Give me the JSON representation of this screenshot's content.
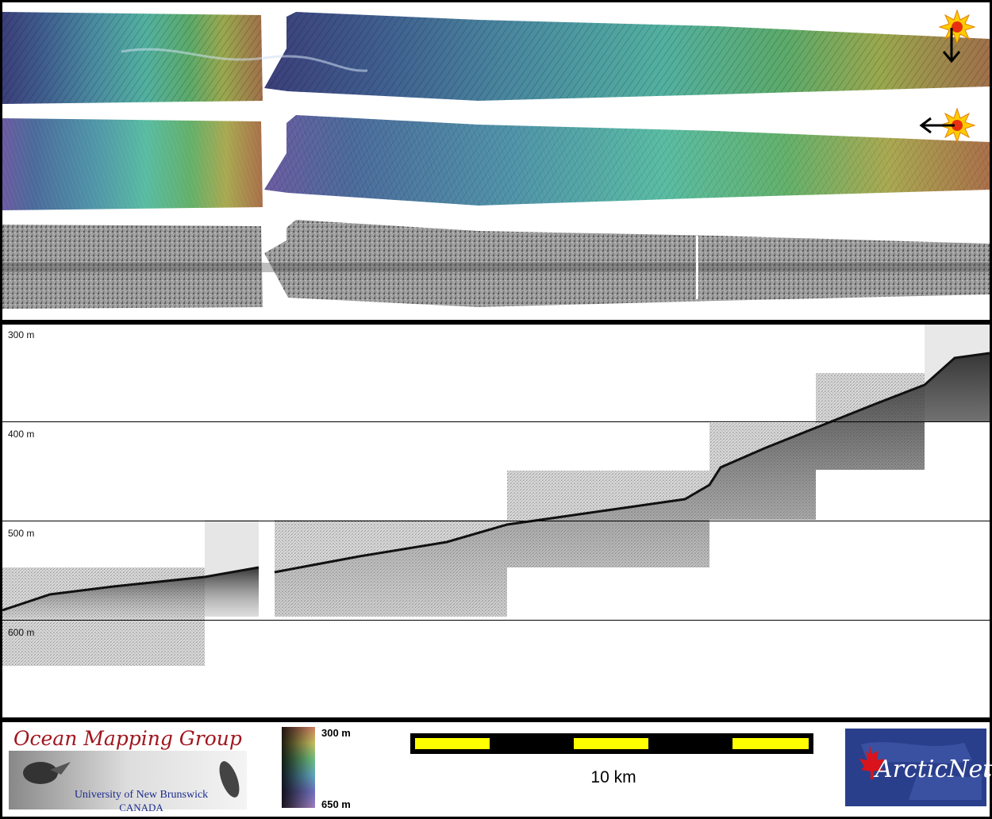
{
  "profile": {
    "depth_labels": [
      "300 m",
      "400 m",
      "500 m",
      "600 m"
    ]
  },
  "legend": {
    "top_label": "300 m",
    "bottom_label": "650 m"
  },
  "scale_bar": {
    "label": "10 km"
  },
  "logos": {
    "omg_title": "Ocean Mapping Group",
    "omg_university": "University of New Brunswick",
    "omg_country": "CANADA",
    "arcticnet_text": "ArcticNet"
  },
  "colors": {
    "background": "#000000",
    "scale_yellow": "#ffff00",
    "omg_red": "#a0161e",
    "omg_blue": "#1a2a8c",
    "arcticnet_blue": "#2a3f8c",
    "maple_red": "#d8131b"
  },
  "icons": {
    "sun_top": "sun-icon",
    "arrow_top": "arrow-down-icon",
    "sun_middle": "sun-icon",
    "arrow_middle": "arrow-left-icon",
    "maple_leaf": "maple-leaf-icon"
  }
}
